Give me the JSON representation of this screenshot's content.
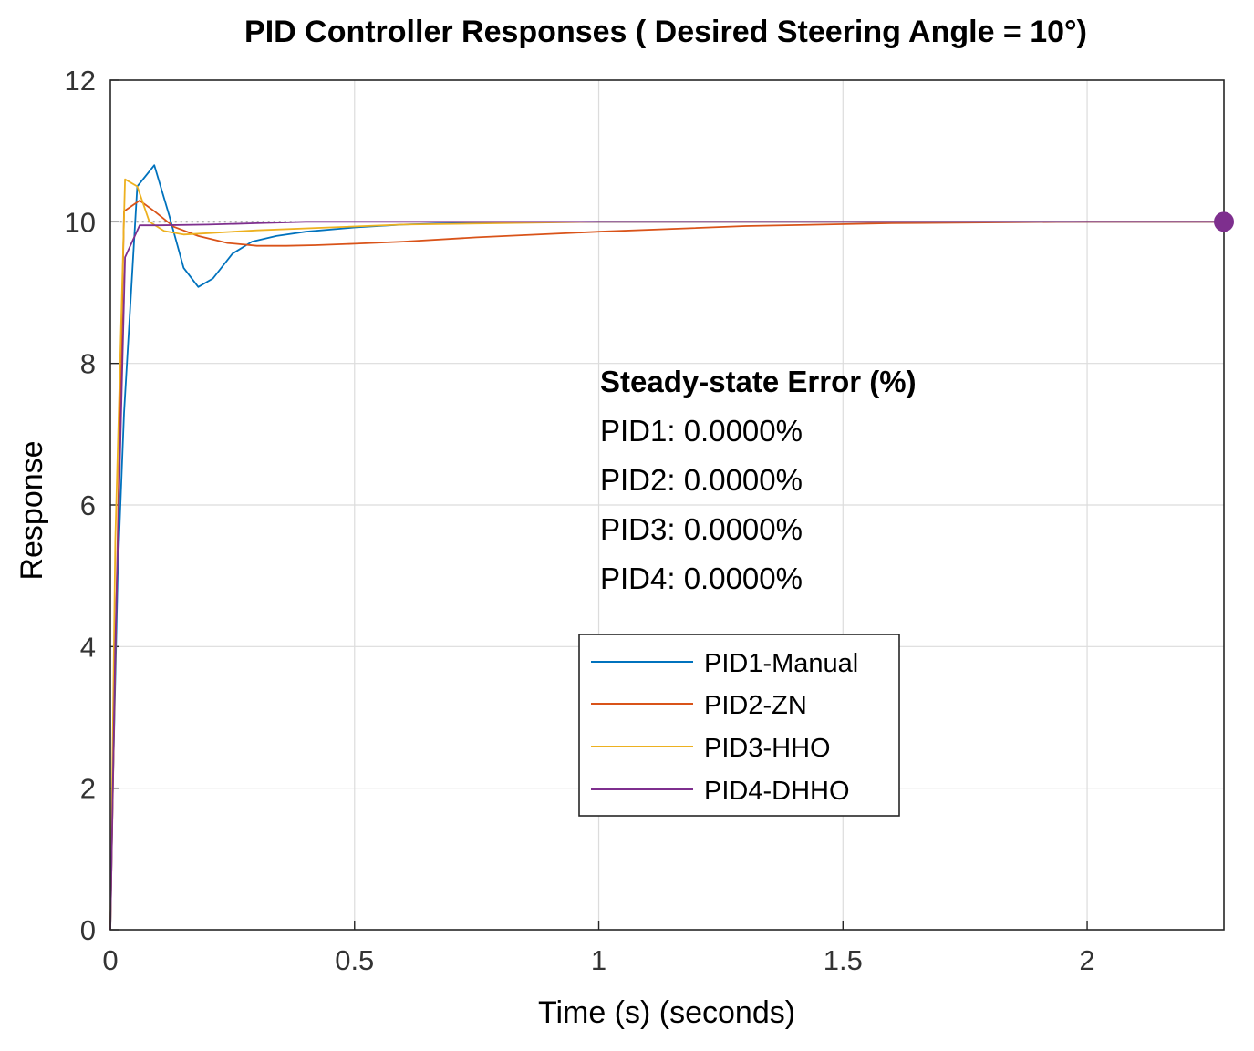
{
  "chart_data": {
    "type": "line",
    "title": "PID Controller Responses ( Desired Steering Angle = 10°)",
    "xlabel": "Time (s) (seconds)",
    "ylabel": "Response",
    "xlim": [
      0,
      2.28
    ],
    "ylim": [
      0,
      12
    ],
    "xticks": [
      0,
      0.5,
      1,
      1.5,
      2
    ],
    "xtick_labels": [
      "0",
      "0.5",
      "1",
      "1.5",
      "2"
    ],
    "yticks": [
      0,
      2,
      4,
      6,
      8,
      10,
      12
    ],
    "ytick_labels": [
      "0",
      "2",
      "4",
      "6",
      "8",
      "10",
      "12"
    ],
    "grid": true,
    "setpoint": 10,
    "series": [
      {
        "name": "PID1-Manual",
        "color": "#0072BD",
        "x": [
          0,
          0.005,
          0.015,
          0.028,
          0.055,
          0.09,
          0.12,
          0.15,
          0.18,
          0.21,
          0.25,
          0.29,
          0.34,
          0.4,
          0.5,
          0.6,
          0.75,
          1.0,
          1.5,
          2.0,
          2.28
        ],
        "y": [
          0,
          2.0,
          5.0,
          7.3,
          10.5,
          10.8,
          10.1,
          9.35,
          9.08,
          9.2,
          9.55,
          9.72,
          9.8,
          9.86,
          9.92,
          9.96,
          9.99,
          10.0,
          10.0,
          10.0,
          10.0
        ]
      },
      {
        "name": "PID2-ZN",
        "color": "#D95319",
        "x": [
          0,
          0.012,
          0.028,
          0.06,
          0.09,
          0.13,
          0.18,
          0.24,
          0.3,
          0.36,
          0.42,
          0.5,
          0.6,
          0.75,
          1.0,
          1.3,
          1.6,
          2.0,
          2.28
        ],
        "y": [
          0,
          4.5,
          10.15,
          10.3,
          10.15,
          9.93,
          9.8,
          9.7,
          9.66,
          9.66,
          9.67,
          9.69,
          9.72,
          9.78,
          9.86,
          9.94,
          9.98,
          10.0,
          10.0
        ],
        "dot": true
      },
      {
        "name": "PID3-HHO",
        "color": "#EDB120",
        "x": [
          0,
          0.01,
          0.03,
          0.055,
          0.08,
          0.11,
          0.15,
          0.2,
          0.3,
          0.45,
          0.6,
          0.8,
          1.0,
          1.5,
          2.0,
          2.28
        ],
        "y": [
          0,
          5.5,
          10.6,
          10.5,
          10.0,
          9.87,
          9.82,
          9.84,
          9.88,
          9.92,
          9.96,
          9.98,
          10.0,
          10.0,
          10.0,
          10.0
        ]
      },
      {
        "name": "PID4-DHHO",
        "color": "#7E2F8E",
        "x": [
          0,
          0.01,
          0.03,
          0.05,
          0.06,
          0.1,
          0.2,
          0.3,
          0.4,
          0.5,
          0.8,
          1.0,
          1.5,
          2.0,
          2.28
        ],
        "y": [
          0,
          4.0,
          9.5,
          9.8,
          9.95,
          9.95,
          9.96,
          9.98,
          10.0,
          10.0,
          10.0,
          10.0,
          10.0,
          10.0,
          10.0
        ],
        "endpoint_marker": true
      }
    ],
    "annotation": {
      "heading": "Steady-state Error (%)",
      "lines": [
        "PID1: 0.0000%",
        "PID2: 0.0000%",
        "PID3: 0.0000%",
        "PID4: 0.0000%"
      ]
    },
    "legend_position": "lower-center"
  }
}
